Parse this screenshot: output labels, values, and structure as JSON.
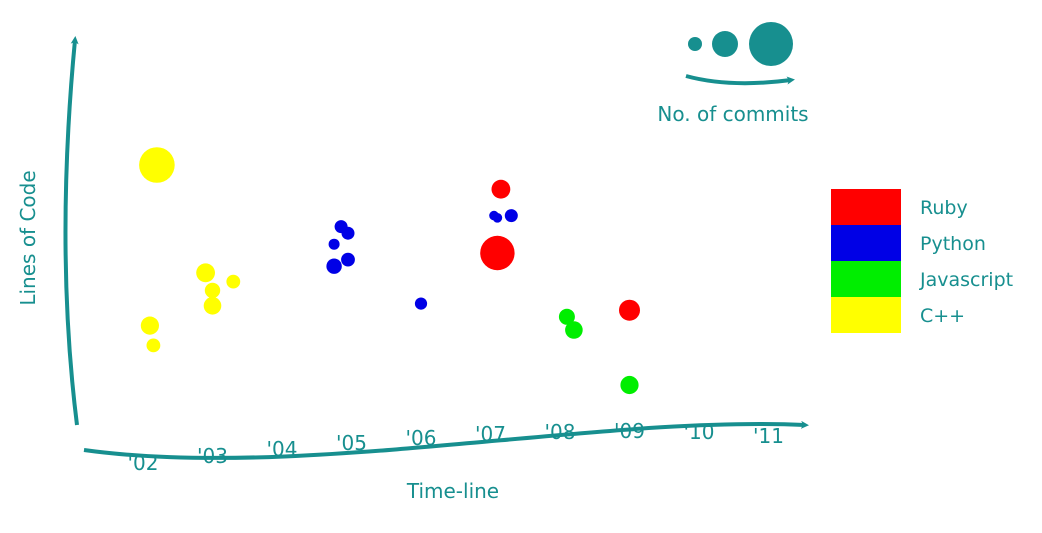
{
  "chart_data": {
    "type": "scatter",
    "title": "",
    "xlabel": "Time-line",
    "ylabel": "Lines of Code",
    "x_ticks": [
      "'02",
      "'03",
      "'04",
      "'05",
      "'06",
      "'07",
      "'08",
      "'09",
      "'10",
      "'11"
    ],
    "grid": false,
    "legend_position": "right",
    "size_legend": {
      "label": "No. of commits",
      "sizes": [
        1,
        2,
        4
      ]
    },
    "series": [
      {
        "name": "Ruby",
        "color": "#ff0000",
        "points": [
          {
            "x": 2007.15,
            "y": 0.89,
            "size": 1.3
          },
          {
            "x": 2007.1,
            "y": 0.6,
            "size": 6.5
          },
          {
            "x": 2009.0,
            "y": 0.34,
            "size": 1.8
          }
        ]
      },
      {
        "name": "Python",
        "color": "#0000e6",
        "points": [
          {
            "x": 2004.85,
            "y": 0.72,
            "size": 0.4
          },
          {
            "x": 2004.95,
            "y": 0.69,
            "size": 0.4
          },
          {
            "x": 2004.75,
            "y": 0.64,
            "size": 0.2
          },
          {
            "x": 2004.95,
            "y": 0.57,
            "size": 0.5
          },
          {
            "x": 2004.75,
            "y": 0.54,
            "size": 0.7
          },
          {
            "x": 2007.05,
            "y": 0.77,
            "size": 0.1
          },
          {
            "x": 2007.1,
            "y": 0.76,
            "size": 0.1
          },
          {
            "x": 2007.3,
            "y": 0.77,
            "size": 0.4
          },
          {
            "x": 2006.0,
            "y": 0.37,
            "size": 0.3
          }
        ]
      },
      {
        "name": "Javascript",
        "color": "#00ee00",
        "points": [
          {
            "x": 2008.1,
            "y": 0.31,
            "size": 0.8
          },
          {
            "x": 2008.2,
            "y": 0.25,
            "size": 1.1
          },
          {
            "x": 2009.0,
            "y": 0.0,
            "size": 1.2
          }
        ]
      },
      {
        "name": "C++",
        "color": "#ffff00",
        "points": [
          {
            "x": 2002.2,
            "y": 1.0,
            "size": 7.0
          },
          {
            "x": 2002.9,
            "y": 0.51,
            "size": 1.3
          },
          {
            "x": 2003.3,
            "y": 0.47,
            "size": 0.5
          },
          {
            "x": 2003.0,
            "y": 0.43,
            "size": 0.7
          },
          {
            "x": 2003.0,
            "y": 0.36,
            "size": 1.1
          },
          {
            "x": 2002.1,
            "y": 0.27,
            "size": 1.2
          },
          {
            "x": 2002.15,
            "y": 0.18,
            "size": 0.5
          }
        ]
      }
    ],
    "axis_color": "#178f8f"
  }
}
